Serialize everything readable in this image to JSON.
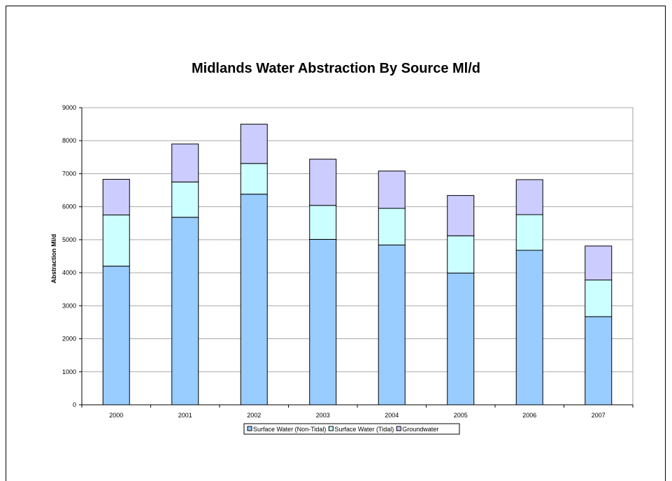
{
  "chart_data": {
    "type": "bar",
    "stacked": true,
    "title": "Midlands Water Abstraction By Source Ml/d",
    "xlabel": "",
    "ylabel": "Abstraction Ml/d",
    "ylim": [
      0,
      9000
    ],
    "yticks": [
      0,
      1000,
      2000,
      3000,
      4000,
      5000,
      6000,
      7000,
      8000,
      9000
    ],
    "grid": true,
    "legend_position": "bottom",
    "categories": [
      "2000",
      "2001",
      "2002",
      "2003",
      "2004",
      "2005",
      "2006",
      "2007"
    ],
    "series": [
      {
        "name": "Surface Water (Non-Tidal)",
        "color": "#99ccff",
        "values": [
          4200,
          5680,
          6380,
          5010,
          4840,
          3990,
          4680,
          2670
        ]
      },
      {
        "name": "Surface Water (Tidal)",
        "color": "#ccffff",
        "values": [
          1550,
          1070,
          930,
          1030,
          1110,
          1130,
          1080,
          1110
        ]
      },
      {
        "name": "Groundwater",
        "color": "#ccccff",
        "values": [
          1080,
          1150,
          1190,
          1400,
          1130,
          1220,
          1060,
          1030
        ]
      }
    ]
  }
}
